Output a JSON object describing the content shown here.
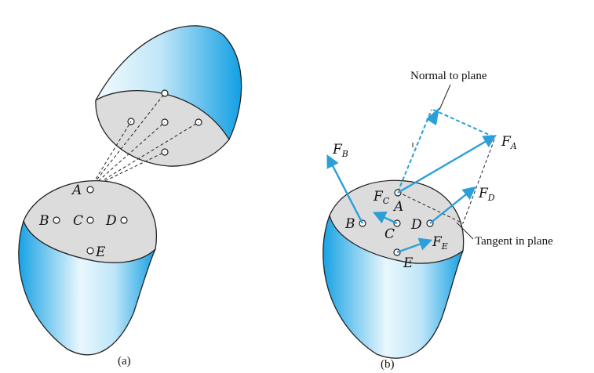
{
  "panel_a": {
    "caption": "(a)",
    "points": {
      "A": "A",
      "B": "B",
      "C": "C",
      "D": "D",
      "E": "E"
    }
  },
  "panel_b": {
    "caption": "(b)",
    "points": {
      "A": "A",
      "B": "B",
      "C": "C",
      "D": "D",
      "E": "E"
    },
    "forces": {
      "FA": {
        "letter": "F",
        "sub": "A"
      },
      "FB": {
        "letter": "F",
        "sub": "B"
      },
      "FC": {
        "letter": "F",
        "sub": "C"
      },
      "FD": {
        "letter": "F",
        "sub": "D"
      },
      "FE": {
        "letter": "F",
        "sub": "E"
      }
    },
    "annotations": {
      "normal": "Normal to plane",
      "tangent": "Tangent in plane"
    }
  },
  "colors": {
    "body_dark": "#1aa7e6",
    "body_light": "#e9f7fd",
    "section_face": "#dcdcdc",
    "arrow": "#2a9fd8",
    "outline": "#222222"
  }
}
